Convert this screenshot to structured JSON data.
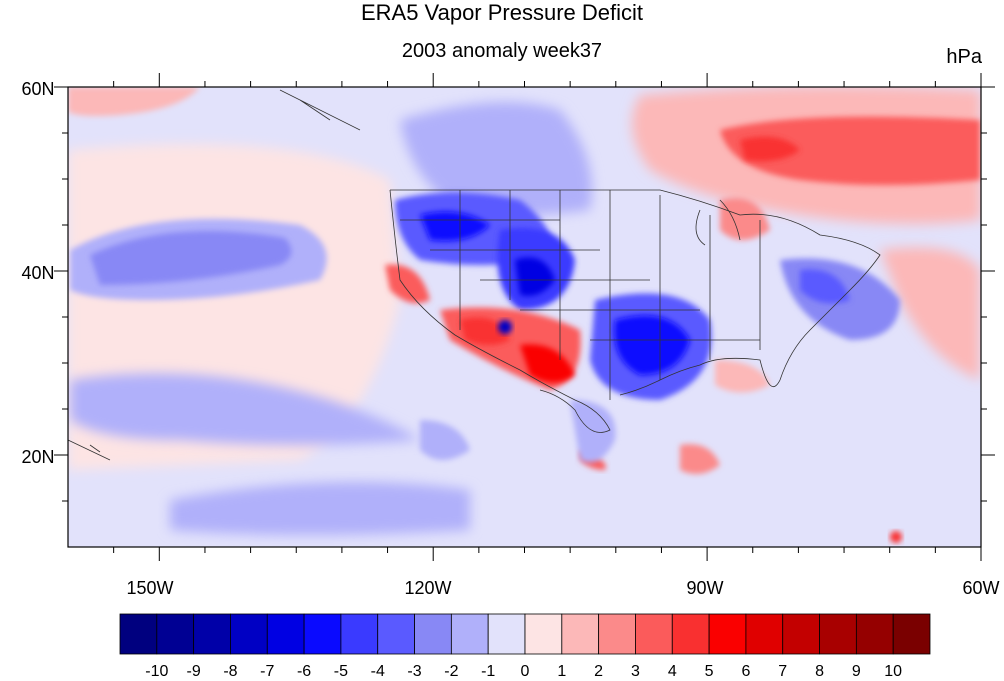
{
  "title": "ERA5 Vapor Pressure Deficit",
  "subtitle": "2003 anomaly week37",
  "units": "hPa",
  "lat_labels": [
    "60N",
    "40N",
    "20N"
  ],
  "lon_labels": [
    "150W",
    "120W",
    "90W",
    "60W"
  ],
  "colorbar": {
    "labels": [
      "-10",
      "-9",
      "-8",
      "-7",
      "-6",
      "-5",
      "-4",
      "-3",
      "-2",
      "-1",
      "0",
      "1",
      "2",
      "3",
      "4",
      "5",
      "6",
      "7",
      "8",
      "9",
      "10"
    ],
    "colors": [
      "#00007f",
      "#000093",
      "#0000a8",
      "#0000c4",
      "#0000e3",
      "#0a0aff",
      "#3a3aff",
      "#5a5aff",
      "#8888f5",
      "#b0b0fa",
      "#e2e2fb",
      "#fde4e4",
      "#fcb8b8",
      "#fb8a8a",
      "#fb5b5b",
      "#f93030",
      "#fa0000",
      "#e00000",
      "#c30000",
      "#a80000",
      "#950000",
      "#7a0000"
    ]
  },
  "chart_data": {
    "type": "heatmap",
    "title": "ERA5 Vapor Pressure Deficit",
    "subtitle": "2003 anomaly week37",
    "units": "hPa",
    "lon_range": [
      -160,
      -60
    ],
    "lat_range": [
      10,
      60
    ],
    "contour_levels": [
      -10,
      -9,
      -8,
      -7,
      -6,
      -5,
      -4,
      -3,
      -2,
      -1,
      0,
      1,
      2,
      3,
      4,
      5,
      6,
      7,
      8,
      9,
      10
    ],
    "features": [
      {
        "lon": -93,
        "lat": 33,
        "value": -4
      },
      {
        "lon": -106,
        "lat": 38,
        "value": -5
      },
      {
        "lon": -118,
        "lat": 44,
        "value": -4
      },
      {
        "lon": -105,
        "lat": 30,
        "value": 5
      },
      {
        "lon": -112,
        "lat": 34,
        "value": 4
      },
      {
        "lon": -122,
        "lat": 38,
        "value": 4
      },
      {
        "lon": -75,
        "lat": 52,
        "value": 4
      },
      {
        "lon": -82,
        "lat": 36,
        "value": -3
      },
      {
        "lon": -145,
        "lat": 41,
        "value": -2
      },
      {
        "lon": -89,
        "lat": 20,
        "value": 3
      }
    ]
  }
}
